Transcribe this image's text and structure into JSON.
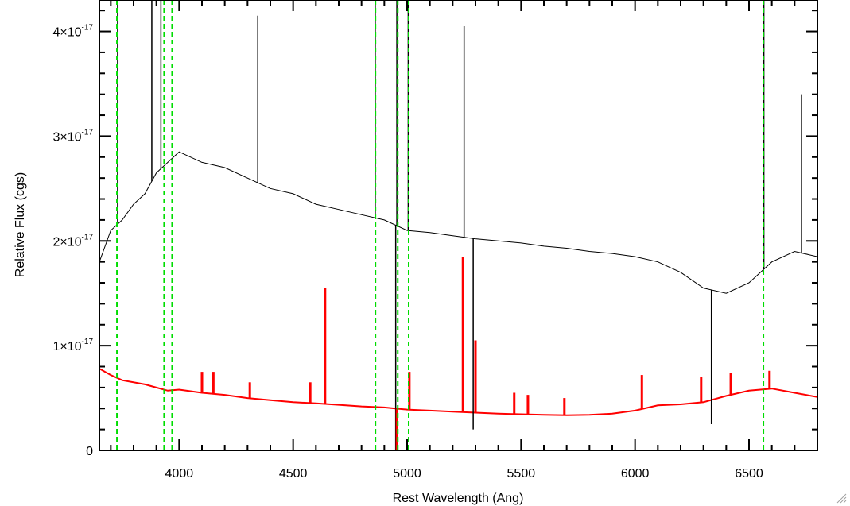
{
  "chart_data": {
    "type": "line",
    "xlabel": "Rest Wavelength (Ang)",
    "ylabel": "Relative Flux (cgs)",
    "xlim": [
      3650,
      6800
    ],
    "ylim": [
      0,
      4.3e-17
    ],
    "x_ticks": [
      {
        "value": 4000,
        "label": "4000"
      },
      {
        "value": 4500,
        "label": "4500"
      },
      {
        "value": 5000,
        "label": "5000"
      },
      {
        "value": 5500,
        "label": "5500"
      },
      {
        "value": 6000,
        "label": "6000"
      },
      {
        "value": 6500,
        "label": "6500"
      }
    ],
    "y_ticks": [
      {
        "value": 0,
        "mantissa": "0",
        "exponent": ""
      },
      {
        "value": 1e-17,
        "mantissa": "1×10",
        "exponent": "-17"
      },
      {
        "value": 2e-17,
        "mantissa": "2×10",
        "exponent": "-17"
      },
      {
        "value": 3e-17,
        "mantissa": "3×10",
        "exponent": "-17"
      },
      {
        "value": 4e-17,
        "mantissa": "4×10",
        "exponent": "-17"
      }
    ],
    "grid": false,
    "colors": {
      "spectrum": "#000000",
      "error": "#ff0000",
      "lines": "#00dd00"
    },
    "reference_lines": [
      3727,
      3934,
      3969,
      4861,
      4959,
      5007,
      6563
    ],
    "series": [
      {
        "color": "#000000",
        "points": [
          [
            3650,
            1.8e-17
          ],
          [
            3700,
            2.1e-17
          ],
          [
            3750,
            2.2e-17
          ],
          [
            3800,
            2.35e-17
          ],
          [
            3850,
            2.45e-17
          ],
          [
            3900,
            2.65e-17
          ],
          [
            3950,
            2.75e-17
          ],
          [
            4000,
            2.85e-17
          ],
          [
            4100,
            2.75e-17
          ],
          [
            4200,
            2.7e-17
          ],
          [
            4300,
            2.6e-17
          ],
          [
            4400,
            2.5e-17
          ],
          [
            4500,
            2.45e-17
          ],
          [
            4600,
            2.35e-17
          ],
          [
            4700,
            2.3e-17
          ],
          [
            4800,
            2.25e-17
          ],
          [
            4900,
            2.2e-17
          ],
          [
            5000,
            2.1e-17
          ],
          [
            5100,
            2.08e-17
          ],
          [
            5200,
            2.05e-17
          ],
          [
            5300,
            2.02e-17
          ],
          [
            5400,
            2e-17
          ],
          [
            5500,
            1.98e-17
          ],
          [
            5600,
            1.95e-17
          ],
          [
            5700,
            1.93e-17
          ],
          [
            5800,
            1.9e-17
          ],
          [
            5900,
            1.88e-17
          ],
          [
            6000,
            1.85e-17
          ],
          [
            6100,
            1.8e-17
          ],
          [
            6200,
            1.7e-17
          ],
          [
            6300,
            1.55e-17
          ],
          [
            6400,
            1.5e-17
          ],
          [
            6500,
            1.6e-17
          ],
          [
            6600,
            1.8e-17
          ],
          [
            6700,
            1.9e-17
          ],
          [
            6800,
            1.85e-17
          ]
        ]
      },
      {
        "color": "#ff0000",
        "points": [
          [
            3650,
            7.8e-18
          ],
          [
            3700,
            7.2e-18
          ],
          [
            3750,
            6.7e-18
          ],
          [
            3850,
            6.3e-18
          ],
          [
            3900,
            6e-18
          ],
          [
            3950,
            5.7e-18
          ],
          [
            4000,
            5.8e-18
          ],
          [
            4100,
            5.5e-18
          ],
          [
            4200,
            5.3e-18
          ],
          [
            4300,
            5e-18
          ],
          [
            4400,
            4.8e-18
          ],
          [
            4500,
            4.6e-18
          ],
          [
            4600,
            4.5e-18
          ],
          [
            4700,
            4.35e-18
          ],
          [
            4800,
            4.2e-18
          ],
          [
            4900,
            4.1e-18
          ],
          [
            5000,
            3.9e-18
          ],
          [
            5100,
            3.8e-18
          ],
          [
            5200,
            3.7e-18
          ],
          [
            5300,
            3.6e-18
          ],
          [
            5400,
            3.5e-18
          ],
          [
            5500,
            3.45e-18
          ],
          [
            5600,
            3.4e-18
          ],
          [
            5700,
            3.35e-18
          ],
          [
            5800,
            3.4e-18
          ],
          [
            5900,
            3.5e-18
          ],
          [
            6000,
            3.8e-18
          ],
          [
            6100,
            4.3e-18
          ],
          [
            6200,
            4.4e-18
          ],
          [
            6300,
            4.6e-18
          ],
          [
            6400,
            5.2e-18
          ],
          [
            6500,
            5.7e-18
          ],
          [
            6600,
            5.9e-18
          ],
          [
            6700,
            5.5e-18
          ],
          [
            6800,
            5.1e-18
          ]
        ]
      }
    ],
    "spikes": [
      {
        "color": "#000000",
        "points": [
          [
            3730,
            5.5e-17
          ],
          [
            3880,
            5e-17
          ],
          [
            3920,
            4.4e-17
          ],
          [
            4345,
            4.15e-17
          ],
          [
            4860,
            5.5e-17
          ],
          [
            4955,
            5.5e-17
          ],
          [
            5005,
            5.5e-17
          ],
          [
            5250,
            4.05e-17
          ],
          [
            6565,
            4.3e-17
          ],
          [
            6730,
            3.4e-17
          ]
        ]
      },
      {
        "color": "#000000",
        "points": [
          [
            4950,
            -3e-18
          ],
          [
            5290,
            2e-18
          ],
          [
            6335,
            2.5e-18
          ]
        ]
      },
      {
        "color": "#ff0000",
        "points": [
          [
            4640,
            1.55e-17
          ],
          [
            5245,
            1.85e-17
          ],
          [
            5300,
            1.05e-17
          ],
          [
            4575,
            6.5e-18
          ],
          [
            4100,
            7.5e-18
          ],
          [
            4150,
            7.5e-18
          ],
          [
            4310,
            6.5e-18
          ],
          [
            5010,
            7.5e-18
          ],
          [
            5470,
            5.5e-18
          ],
          [
            5530,
            5.3e-18
          ],
          [
            5690,
            5e-18
          ],
          [
            6030,
            7.2e-18
          ],
          [
            6290,
            7e-18
          ],
          [
            6420,
            7.4e-18
          ],
          [
            6590,
            7.6e-18
          ]
        ]
      },
      {
        "color": "#ff0000",
        "points": [
          [
            4955,
            -4e-18
          ]
        ]
      }
    ]
  }
}
